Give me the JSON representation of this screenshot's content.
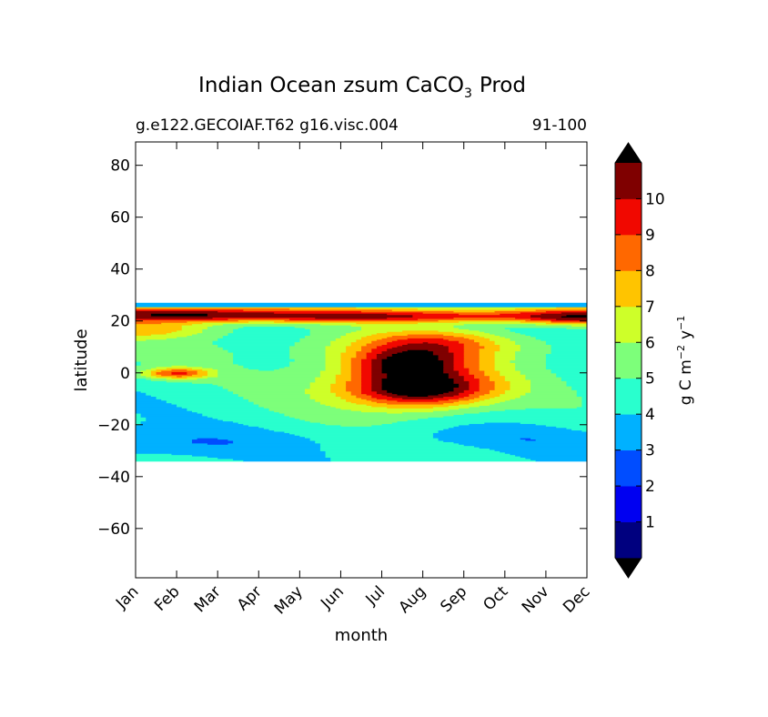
{
  "chart_data": {
    "type": "heatmap",
    "title": "Indian Ocean zsum CaCO",
    "title_subscript": "3",
    "title_suffix": "Prod",
    "subtitle_left": "g.e122.GECOIAF.T62 g16.visc.004",
    "subtitle_right": "91-100",
    "xlabel": "month",
    "ylabel": "latitude",
    "x_ticks": [
      "Jan",
      "Feb",
      "Mar",
      "Apr",
      "May",
      "Jun",
      "Jul",
      "Aug",
      "Sep",
      "Oct",
      "Nov",
      "Dec"
    ],
    "xlim": [
      0,
      11
    ],
    "y_ticks": [
      80,
      60,
      40,
      20,
      0,
      -20,
      -40,
      -60
    ],
    "y_tick_labels": [
      "80",
      "60",
      "40",
      "20",
      "0",
      "−20",
      "−40",
      "−60"
    ],
    "ylim": [
      -79,
      89
    ],
    "data_lat_range": [
      -34,
      27
    ],
    "colorbar": {
      "label": "g C m",
      "label_exp1": "−2",
      "label_mid": "y",
      "label_exp2": "−1",
      "levels": [
        0,
        1,
        2,
        3,
        4,
        5,
        6,
        7,
        8,
        9,
        10,
        11
      ],
      "tick_labels": [
        "1",
        "2",
        "3",
        "4",
        "5",
        "6",
        "7",
        "8",
        "9",
        "10"
      ],
      "colors": [
        "#00007f",
        "#0000f1",
        "#004dff",
        "#00b1ff",
        "#29ffce",
        "#7dff7a",
        "#ceff29",
        "#ffc400",
        "#ff6800",
        "#f10800",
        "#7f0000"
      ],
      "under_color": "#000000",
      "over_color": "#000000",
      "extend": "both"
    },
    "field_features": {
      "background_level": 4.5,
      "band_north": [
        {
          "lat": 26,
          "value": 3.6
        },
        {
          "lat": 23,
          "month": 1.0,
          "value": 11.5
        },
        {
          "lat": 21,
          "month": 5.5,
          "value": 10.5
        },
        {
          "lat": 21,
          "month": 10.5,
          "value": 9.5
        }
      ],
      "hotspots": [
        {
          "month": 6.9,
          "lat": -6,
          "value": 11.8
        },
        {
          "month": 6.6,
          "lat": 4,
          "value": 10.4
        },
        {
          "month": 7.3,
          "lat": 12,
          "value": 8.7
        },
        {
          "month": 1.0,
          "lat": 0,
          "value": 9.2
        }
      ],
      "south_low_region": {
        "lat": -27,
        "value": 3.2
      }
    }
  }
}
